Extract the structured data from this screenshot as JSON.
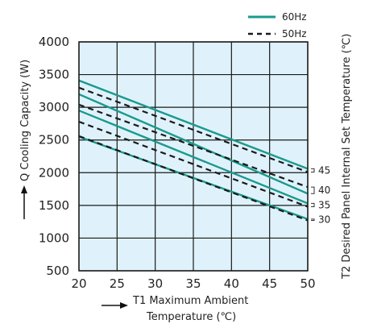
{
  "chart_data": {
    "type": "line",
    "title": "",
    "xlabel_line1": "T1 Maximum Ambient",
    "xlabel_line2": "Temperature (℃)",
    "ylabel": "Q Cooling Capacity (W)",
    "y2label": "T2 Desired Panel Internal Set Temperature (℃)",
    "xlim": [
      20,
      50
    ],
    "ylim": [
      500,
      4000
    ],
    "x_ticks": [
      20,
      25,
      30,
      35,
      40,
      45,
      50
    ],
    "y_ticks": [
      500,
      1000,
      1500,
      2000,
      2500,
      3000,
      3500,
      4000
    ],
    "x_tick_labels": [
      "20",
      "25",
      "30",
      "35",
      "40",
      "45",
      "50"
    ],
    "y_tick_labels": [
      "500",
      "1000",
      "1500",
      "2000",
      "2500",
      "3000",
      "3500",
      "4000"
    ],
    "grid": true,
    "legend_position": "top-right",
    "legend": [
      {
        "label": "60Hz",
        "style": "solid",
        "color": "#1a9a8c"
      },
      {
        "label": "50Hz",
        "style": "dashed",
        "color": "#1a1a1a"
      }
    ],
    "right_labels": [
      "45",
      "40",
      "35",
      "30"
    ],
    "colors": {
      "background": "#dff2fb",
      "grid": "#1a1a1a",
      "solid_line": "#1a9a8c",
      "dashed_line": "#1a1a1a"
    },
    "series": [
      {
        "name": "60Hz",
        "t2": "45",
        "style": "solid",
        "x": [
          20,
          50
        ],
        "y": [
          3410,
          2060
        ]
      },
      {
        "name": "60Hz",
        "t2": "40",
        "style": "solid",
        "x": [
          20,
          50
        ],
        "y": [
          3200,
          1680
        ]
      },
      {
        "name": "60Hz",
        "t2": "35",
        "style": "solid",
        "x": [
          20,
          50
        ],
        "y": [
          2950,
          1530
        ]
      },
      {
        "name": "60Hz",
        "t2": "30",
        "style": "solid",
        "x": [
          20,
          50
        ],
        "y": [
          2550,
          1290
        ]
      },
      {
        "name": "50Hz",
        "t2": "45",
        "style": "dashed",
        "x": [
          20,
          50
        ],
        "y": [
          3300,
          2010
        ]
      },
      {
        "name": "50Hz",
        "t2": "40",
        "style": "dashed",
        "x": [
          20,
          50
        ],
        "y": [
          3040,
          1780
        ]
      },
      {
        "name": "50Hz",
        "t2": "35",
        "style": "dashed",
        "x": [
          20,
          50
        ],
        "y": [
          2780,
          1480
        ]
      },
      {
        "name": "50Hz",
        "t2": "30",
        "style": "dashed",
        "x": [
          20,
          50
        ],
        "y": [
          2560,
          1270
        ]
      }
    ]
  }
}
